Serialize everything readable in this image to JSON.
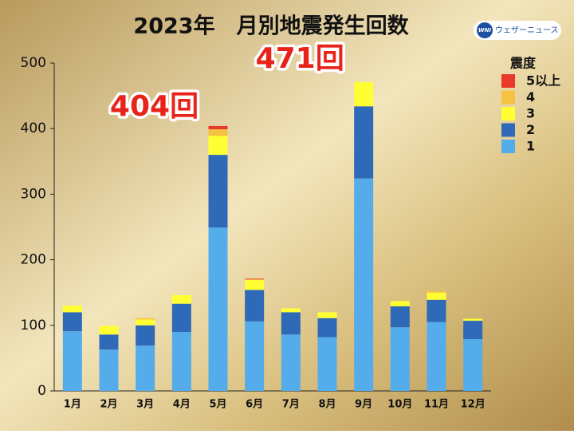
{
  "chart_data": {
    "type": "stacked_bar",
    "title": "2023年　月別地震発生回数",
    "logo": {
      "badge": "WNI",
      "text": "ウェザーニュース"
    },
    "legend_title": "震度",
    "categories": [
      "1月",
      "2月",
      "3月",
      "4月",
      "5月",
      "6月",
      "7月",
      "8月",
      "9月",
      "10月",
      "11月",
      "12月"
    ],
    "series": [
      {
        "name": "1",
        "color": "#55acea",
        "values": [
          91,
          63,
          69,
          90,
          249,
          106,
          86,
          82,
          324,
          97,
          105,
          79
        ]
      },
      {
        "name": "2",
        "color": "#2e6ab8",
        "values": [
          29,
          23,
          31,
          43,
          111,
          48,
          34,
          29,
          110,
          32,
          34,
          28
        ]
      },
      {
        "name": "3",
        "color": "#ffff33",
        "values": [
          10,
          13,
          9,
          13,
          29,
          15,
          6,
          9,
          37,
          8,
          11,
          3
        ]
      },
      {
        "name": "4",
        "color": "#f5c242",
        "values": [
          0,
          0,
          2,
          0,
          10,
          1,
          0,
          0,
          0,
          0,
          2,
          0
        ]
      },
      {
        "name": "5以上",
        "color": "#e8392a",
        "values": [
          0,
          0,
          0,
          0,
          5,
          1,
          0,
          0,
          0,
          0,
          0,
          0
        ]
      }
    ],
    "annotations": [
      {
        "text": "404回",
        "category": 4
      },
      {
        "text": "471回",
        "category": 8
      }
    ],
    "ylim": [
      0,
      500
    ],
    "yticks": [
      0,
      100,
      200,
      300,
      400,
      500
    ]
  }
}
